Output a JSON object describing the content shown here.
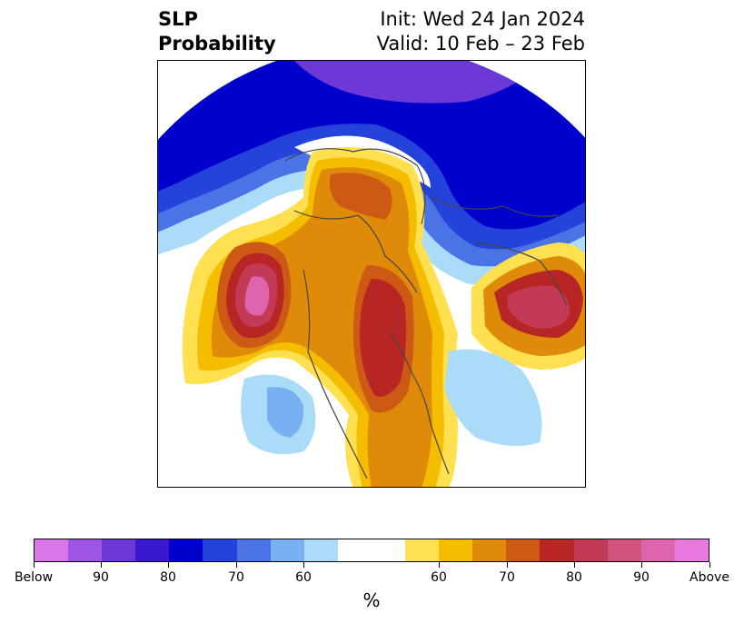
{
  "title": {
    "left_line1": "SLP",
    "left_line2": "Probability",
    "right_line1": "Init: Wed 24 Jan 2024",
    "right_line2": "Valid: 10 Feb – 23 Feb"
  },
  "colorbar": {
    "unit": "%",
    "colors": [
      "#d977e8",
      "#9d55e2",
      "#6c39d8",
      "#3a18d0",
      "#0000cc",
      "#2343db",
      "#4a74e6",
      "#78b1f2",
      "#aadcf7",
      "#ffffff",
      "#ffe050",
      "#f5bd00",
      "#e08a0a",
      "#cc5a14",
      "#b82525",
      "#c23a55",
      "#cf5480",
      "#de65ad",
      "#e879e0"
    ],
    "tick_labels": [
      "Below",
      "90",
      "80",
      "70",
      "60",
      "60",
      "70",
      "80",
      "90",
      "Above"
    ]
  }
}
